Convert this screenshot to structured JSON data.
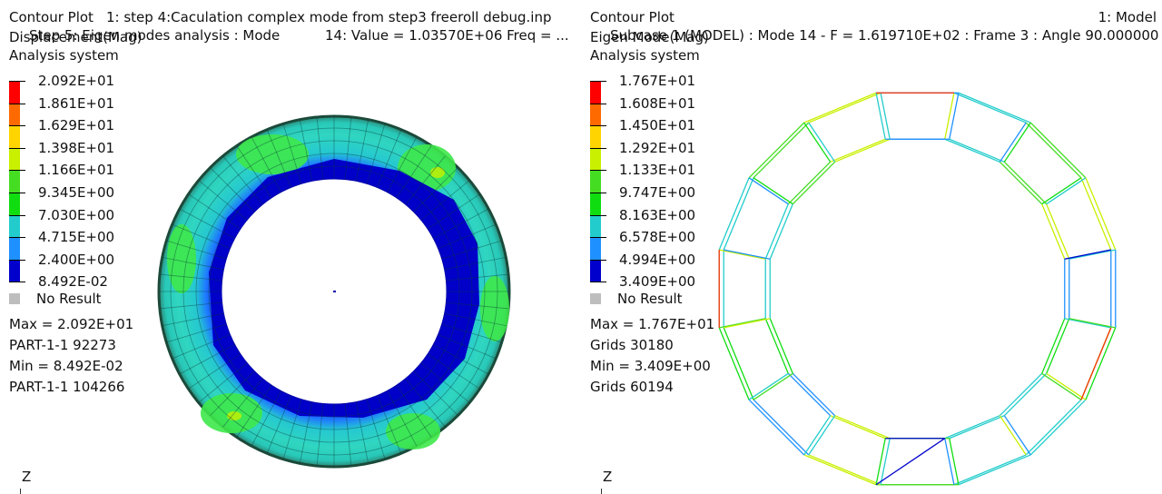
{
  "left": {
    "title_left": "Contour Plot",
    "title_right": "1:  step 4:Caculation complex mode from step3 freeroll debug.inp",
    "subcase_line": "Step 5: Eigen modes analysis : Mode",
    "value_line": "14: Value =  1.03570E+06 Freq =  ...",
    "result_type": "Displacement(Mag)",
    "system": "Analysis system",
    "legend": {
      "labels": [
        "2.092E+01",
        "1.861E+01",
        "1.629E+01",
        "1.398E+01",
        "1.166E+01",
        "9.345E+00",
        "7.030E+00",
        "4.715E+00",
        "2.400E+00",
        "8.492E-02"
      ],
      "colors": [
        "#ff0000",
        "#ff6a00",
        "#ffd400",
        "#c8f000",
        "#44dd22",
        "#10dd10",
        "#22cccc",
        "#1e90ff",
        "#0000cc"
      ]
    },
    "no_result": "No Result",
    "max_line": "Max =  2.092E+01",
    "max_entity": "PART-1-1 92273",
    "min_line": "Min =  8.492E-02",
    "min_entity": "PART-1-1 104266",
    "axis_label": "Z"
  },
  "right": {
    "title_left": "Contour Plot",
    "title_right": "1: Model",
    "subcase_line": "Subcase 1 (MODEL) : Mode 14 - F = 1.619710E+02 : Frame 3 : Angle 90.000000",
    "result_type": "Eigen Mode(Mag)",
    "system": "Analysis system",
    "legend": {
      "labels": [
        "1.767E+01",
        "1.608E+01",
        "1.450E+01",
        "1.292E+01",
        "1.133E+01",
        "9.747E+00",
        "8.163E+00",
        "6.578E+00",
        "4.994E+00",
        "3.409E+00"
      ],
      "colors": [
        "#ff0000",
        "#ff6a00",
        "#ffd400",
        "#c8f000",
        "#44dd22",
        "#10dd10",
        "#22cccc",
        "#1e90ff",
        "#0000cc"
      ]
    },
    "no_result": "No Result",
    "max_line": "Max =  1.767E+01",
    "max_entity": "Grids 30180",
    "min_line": "Min =  3.409E+00",
    "min_entity": "Grids 60194",
    "axis_label": "Z"
  }
}
